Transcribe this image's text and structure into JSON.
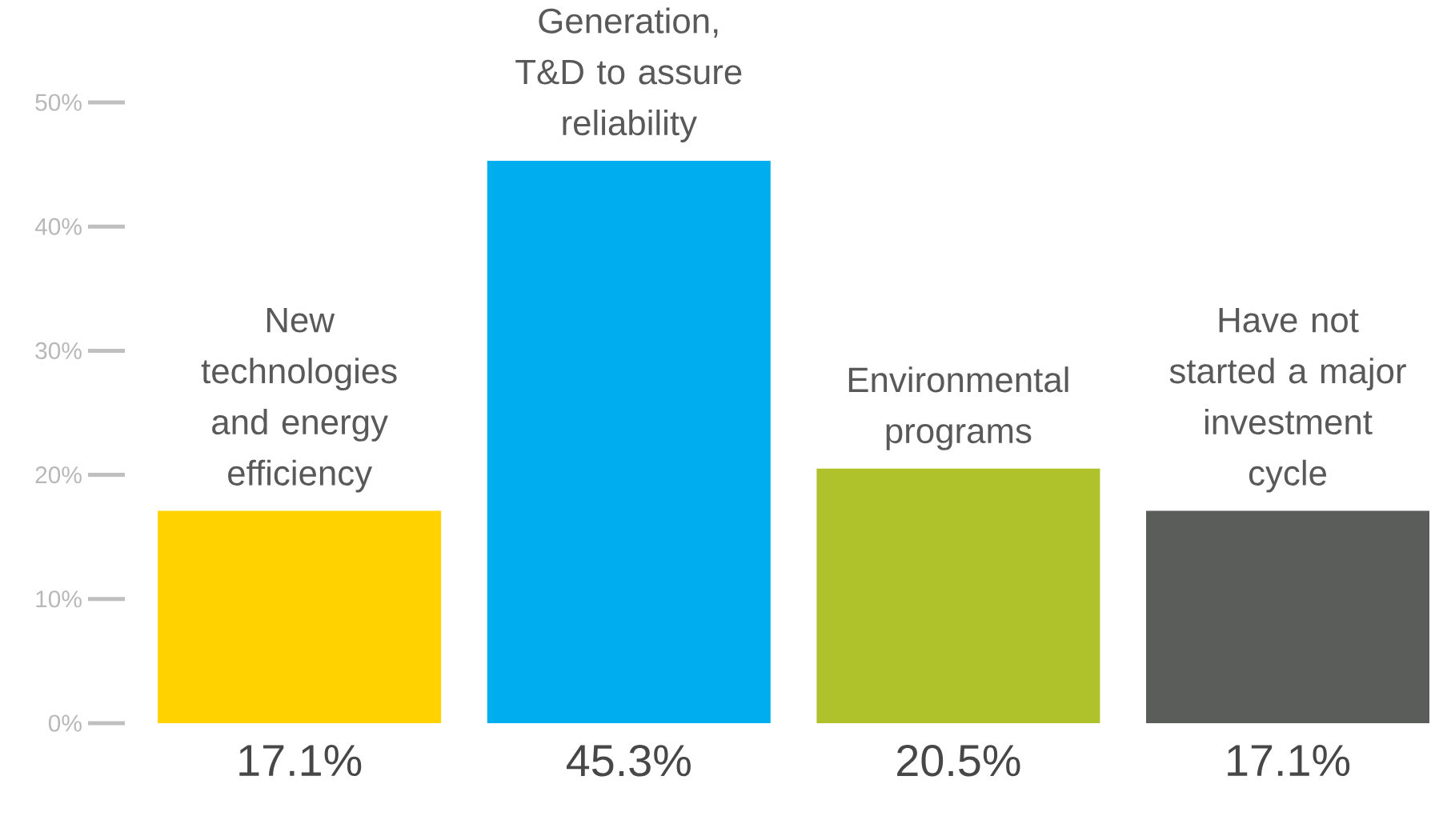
{
  "chart_data": {
    "type": "bar",
    "categories": [
      "New technologies and energy efficiency",
      "Generation, T&D to assure reliability",
      "Environmental programs",
      "Have not started a major investment cycle"
    ],
    "values": [
      17.1,
      45.3,
      20.5,
      17.1
    ],
    "colors": [
      "#ffd200",
      "#00aeef",
      "#afc22b",
      "#5b5d5a"
    ],
    "value_labels": [
      "17.1%",
      "45.3%",
      "20.5%",
      "17.1%"
    ],
    "ylim": [
      0,
      50
    ],
    "yticks": [
      {
        "value": 0,
        "label": "0%"
      },
      {
        "value": 10,
        "label": "10%"
      },
      {
        "value": 20,
        "label": "20%"
      },
      {
        "value": 30,
        "label": "30%"
      },
      {
        "value": 40,
        "label": "40%"
      },
      {
        "value": 50,
        "label": "50%"
      }
    ]
  }
}
